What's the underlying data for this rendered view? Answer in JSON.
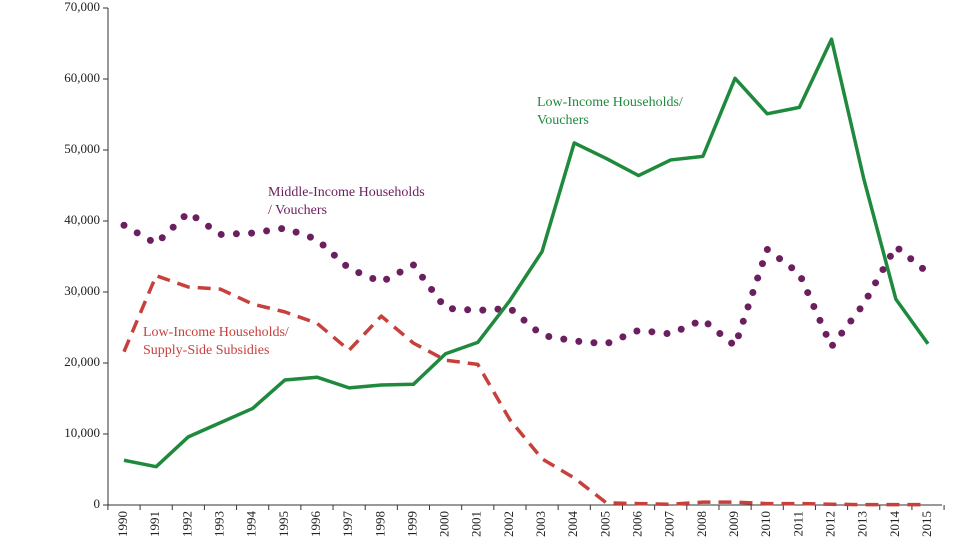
{
  "chart_data": {
    "type": "line",
    "categories": [
      "1990",
      "1991",
      "1992",
      "1993",
      "1994",
      "1995",
      "1996",
      "1997",
      "1998",
      "1999",
      "2000",
      "2001",
      "2002",
      "2003",
      "2004",
      "2005",
      "2006",
      "2007",
      "2008",
      "2009",
      "2010",
      "2011",
      "2012",
      "2013",
      "2014",
      "2015"
    ],
    "series": [
      {
        "name": "Low-Income Households/ Vouchers",
        "color": "#1f8a3d",
        "style": "solid",
        "values": [
          6300,
          5400,
          9600,
          11600,
          13600,
          17600,
          18000,
          16500,
          16900,
          17000,
          21300,
          22900,
          28800,
          35700,
          51000,
          48800,
          46400,
          48600,
          49100,
          60100,
          55100,
          56000,
          65600,
          46000,
          29000,
          22700
        ]
      },
      {
        "name": "Middle-Income Households / Vouchers",
        "color": "#6b1f5e",
        "style": "dotted",
        "values": [
          39400,
          36800,
          41200,
          38100,
          38300,
          39000,
          37400,
          33300,
          31400,
          33800,
          27700,
          27400,
          27700,
          23900,
          23100,
          22700,
          24600,
          24100,
          26100,
          22400,
          36000,
          32600,
          22300,
          28300,
          36400,
          32700
        ]
      },
      {
        "name": "Low-Income Households/ Supply-Side Subsidies",
        "color": "#c8403c",
        "style": "dashed",
        "values": [
          21600,
          32300,
          30700,
          30400,
          28300,
          27200,
          25600,
          21800,
          26600,
          22800,
          20400,
          19800,
          12000,
          6500,
          3800,
          300,
          200,
          100,
          400,
          400,
          200,
          200,
          100,
          50,
          50,
          50
        ]
      }
    ],
    "annotations": [
      {
        "series": 0,
        "lines": [
          "Low-Income Households/",
          "Vouchers"
        ]
      },
      {
        "series": 1,
        "lines": [
          "Middle-Income Households",
          "/ Vouchers"
        ]
      },
      {
        "series": 2,
        "lines": [
          "Low-Income Households/",
          "Supply-Side Subsidies"
        ]
      }
    ],
    "ylim": [
      0,
      70000
    ],
    "yticks": [
      0,
      {
        "value": 10000,
        "label": "10,000"
      },
      {
        "value": 20000,
        "label": "20,000"
      },
      {
        "value": 30000,
        "label": "30,000"
      },
      {
        "value": 40000,
        "label": "40,000"
      },
      {
        "value": 50000,
        "label": "50,000"
      },
      {
        "value": 60000,
        "label": "60,000"
      },
      {
        "value": 70000,
        "label": "70,000"
      }
    ],
    "grid": false
  }
}
